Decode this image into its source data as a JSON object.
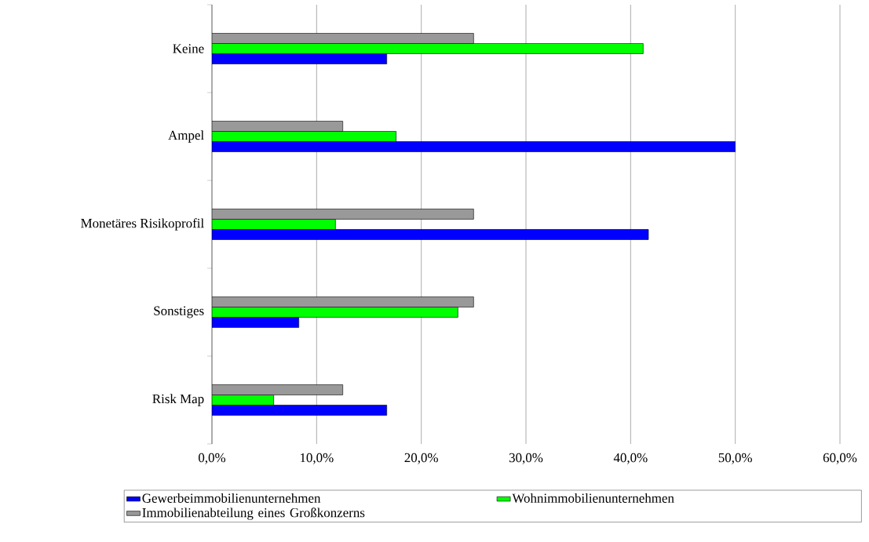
{
  "chart_data": {
    "type": "bar",
    "orientation": "horizontal",
    "categories": [
      "Keine",
      "Ampel",
      "Monetäres Risikoprofil",
      "Sonstiges",
      "Risk Map"
    ],
    "series": [
      {
        "name": "Gewerbeimmobilienunternehmen",
        "color": "#0000ff",
        "values": [
          16.7,
          50.0,
          41.7,
          8.3,
          16.7
        ]
      },
      {
        "name": "Wohnimmobilienunternehmen",
        "color": "#00ff00",
        "values": [
          41.2,
          17.6,
          11.8,
          23.5,
          5.9
        ]
      },
      {
        "name": "Immobilienabteilung eines Großkonzerns",
        "color": "#999999",
        "values": [
          25.0,
          12.5,
          25.0,
          25.0,
          12.5
        ]
      }
    ],
    "xlim": [
      0,
      60
    ],
    "xticks": [
      {
        "value": 0,
        "label": "0,0%"
      },
      {
        "value": 10,
        "label": "10,0%"
      },
      {
        "value": 20,
        "label": "20,0%"
      },
      {
        "value": 30,
        "label": "30,0%"
      },
      {
        "value": 40,
        "label": "40,0%"
      },
      {
        "value": 50,
        "label": "50,0%"
      },
      {
        "value": 60,
        "label": "60,0%"
      }
    ],
    "grid": "x",
    "legend": "bottom"
  }
}
